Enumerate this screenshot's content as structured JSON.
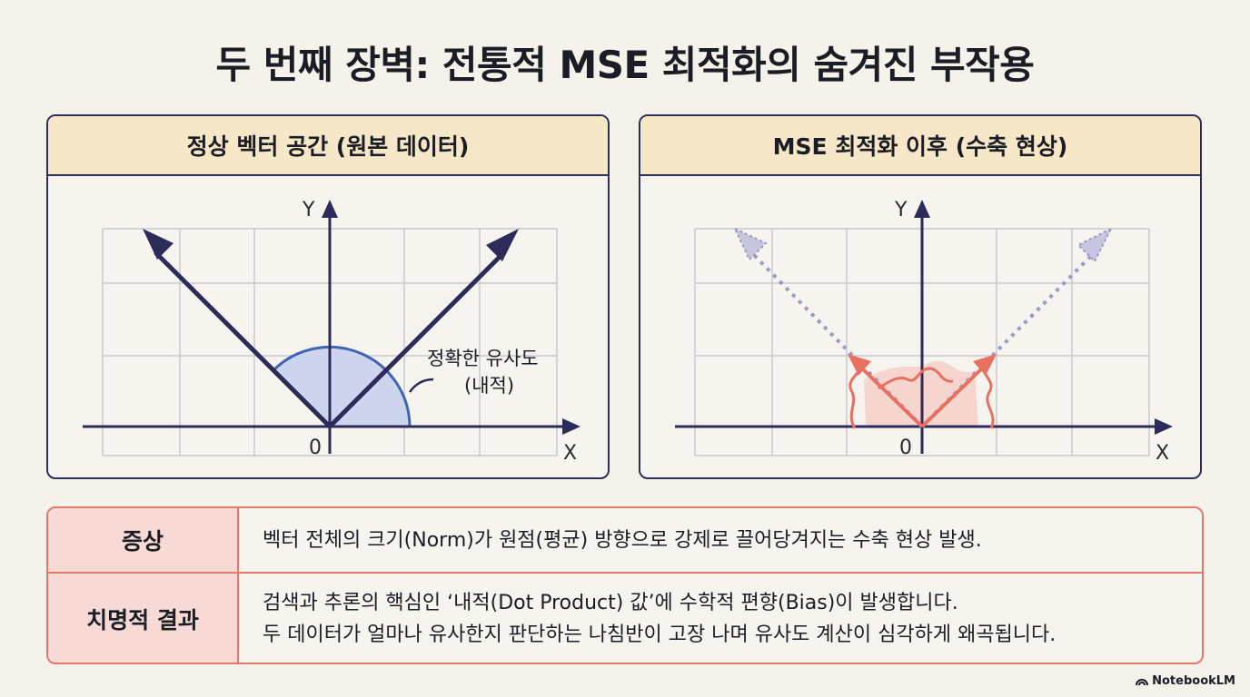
{
  "title": "두 번째 장벽: 전통적 MSE 최적화의 숨겨진 부작용",
  "left_panel": {
    "heading": "정상 벡터 공간 (원본 데이터)",
    "y_label": "Y",
    "x_label": "X",
    "origin_label": "0",
    "annotation_line1": "정확한 유사도",
    "annotation_line2": "(내적)"
  },
  "right_panel": {
    "heading": "MSE 최적화 이후 (수축 현상)",
    "y_label": "Y",
    "x_label": "X",
    "origin_label": "0"
  },
  "table": {
    "row1_label": "증상",
    "row1_text": "벡터 전체의 크기(Norm)가 원점(평균) 방향으로 강제로 끌어당겨지는 수축 현상 발생.",
    "row2_label": "치명적 결과",
    "row2_line1": "검색과 추론의 핵심인 ‘내적(Dot Product) 값’에 수학적 편향(Bias)이 발생합니다.",
    "row2_line2": "두 데이터가 얼마나 유사한지 판단하는 나침반이 고장 나며 유사도 계산이 심각하게 왜곡됩니다."
  },
  "brand": "NotebookLM",
  "colors": {
    "vector": "#2d2b5a",
    "similarity_fill": "#cdd5ee",
    "similarity_stroke": "#3f64b2",
    "shrunk_vector": "#e8705f",
    "ghost_vector": "#9d99c2",
    "table_border": "#e17a6c",
    "header_fill": "#f6e7c8"
  }
}
